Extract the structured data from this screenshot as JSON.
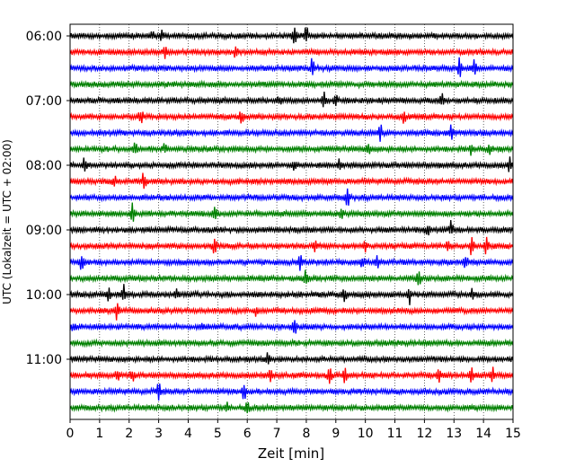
{
  "chart_data": {
    "type": "line",
    "xlabel": "Zeit  [min]",
    "ylabel": "UTC (Lokalzeit = UTC + 02:00)",
    "xlim": [
      0,
      15
    ],
    "x_ticks": [
      "0",
      "1",
      "2",
      "3",
      "4",
      "5",
      "6",
      "7",
      "8",
      "9",
      "10",
      "11",
      "12",
      "13",
      "14",
      "15"
    ],
    "y_tick_labels": [
      "06:00",
      "07:00",
      "08:00",
      "09:00",
      "10:00",
      "11:00"
    ],
    "grid": "vertical dotted",
    "trace_interval_minutes": 15,
    "trace_colors": [
      "#000000",
      "#ff0000",
      "#0000ff",
      "#008000"
    ],
    "series": [
      {
        "start": "06:00",
        "color": "#000000",
        "events": [
          [
            2.8,
            0.5
          ],
          [
            3.1,
            0.4
          ],
          [
            7.6,
            1.0
          ],
          [
            8.0,
            1.0
          ]
        ]
      },
      {
        "start": "06:15",
        "color": "#ff0000",
        "events": [
          [
            3.2,
            0.6
          ],
          [
            5.6,
            0.5
          ]
        ]
      },
      {
        "start": "06:30",
        "color": "#0000ff",
        "events": [
          [
            8.2,
            0.9
          ],
          [
            13.2,
            1.0
          ],
          [
            13.7,
            0.8
          ]
        ]
      },
      {
        "start": "06:45",
        "color": "#008000",
        "events": []
      },
      {
        "start": "07:00",
        "color": "#000000",
        "events": [
          [
            7.1,
            0.5
          ],
          [
            8.6,
            0.7
          ],
          [
            9.0,
            0.8
          ],
          [
            12.6,
            0.7
          ]
        ]
      },
      {
        "start": "07:15",
        "color": "#ff0000",
        "events": [
          [
            2.4,
            0.9
          ],
          [
            5.8,
            0.6
          ],
          [
            11.3,
            0.6
          ]
        ]
      },
      {
        "start": "07:30",
        "color": "#0000ff",
        "events": [
          [
            10.5,
            0.8
          ],
          [
            12.9,
            0.8
          ]
        ]
      },
      {
        "start": "07:45",
        "color": "#008000",
        "events": [
          [
            2.2,
            0.5
          ],
          [
            3.2,
            0.5
          ],
          [
            10.1,
            0.7
          ],
          [
            13.6,
            0.6
          ],
          [
            14.2,
            0.5
          ]
        ]
      },
      {
        "start": "08:00",
        "color": "#000000",
        "events": [
          [
            0.5,
            0.9
          ],
          [
            7.6,
            0.5
          ],
          [
            9.1,
            0.5
          ],
          [
            14.9,
            0.8
          ]
        ]
      },
      {
        "start": "08:15",
        "color": "#ff0000",
        "events": [
          [
            1.5,
            0.4
          ],
          [
            2.5,
            0.9
          ]
        ]
      },
      {
        "start": "08:30",
        "color": "#0000ff",
        "events": [
          [
            9.4,
            0.9
          ]
        ]
      },
      {
        "start": "08:45",
        "color": "#008000",
        "events": [
          [
            2.1,
            1.0
          ],
          [
            4.9,
            0.8
          ],
          [
            9.2,
            0.5
          ]
        ]
      },
      {
        "start": "09:00",
        "color": "#000000",
        "events": [
          [
            12.1,
            0.7
          ],
          [
            12.9,
            0.8
          ]
        ]
      },
      {
        "start": "09:15",
        "color": "#ff0000",
        "events": [
          [
            4.9,
            1.0
          ],
          [
            8.3,
            0.5
          ],
          [
            10.0,
            0.5
          ],
          [
            12.8,
            0.6
          ],
          [
            13.6,
            0.9
          ],
          [
            14.1,
            0.8
          ]
        ]
      },
      {
        "start": "09:30",
        "color": "#0000ff",
        "events": [
          [
            0.4,
            0.8
          ],
          [
            7.8,
            0.7
          ],
          [
            9.9,
            0.6
          ],
          [
            10.4,
            0.6
          ],
          [
            13.4,
            0.5
          ]
        ]
      },
      {
        "start": "09:45",
        "color": "#008000",
        "events": [
          [
            8.0,
            0.9
          ],
          [
            11.8,
            0.8
          ]
        ]
      },
      {
        "start": "10:00",
        "color": "#000000",
        "events": [
          [
            1.3,
            0.6
          ],
          [
            1.8,
            0.9
          ],
          [
            3.6,
            0.5
          ],
          [
            9.3,
            0.6
          ],
          [
            11.5,
            0.9
          ],
          [
            13.6,
            0.6
          ]
        ]
      },
      {
        "start": "10:15",
        "color": "#ff0000",
        "events": [
          [
            1.6,
            0.9
          ],
          [
            6.3,
            0.6
          ]
        ]
      },
      {
        "start": "10:30",
        "color": "#0000ff",
        "events": [
          [
            0.1,
            0.5
          ],
          [
            4.5,
            0.4
          ],
          [
            7.6,
            0.8
          ]
        ]
      },
      {
        "start": "10:45",
        "color": "#008000",
        "events": []
      },
      {
        "start": "11:00",
        "color": "#000000",
        "events": [
          [
            6.7,
            0.9
          ]
        ]
      },
      {
        "start": "11:15",
        "color": "#ff0000",
        "events": [
          [
            1.6,
            0.6
          ],
          [
            2.1,
            0.6
          ],
          [
            6.8,
            0.5
          ],
          [
            8.8,
            0.8
          ],
          [
            9.3,
            0.7
          ],
          [
            12.5,
            0.7
          ],
          [
            13.6,
            0.7
          ],
          [
            14.3,
            0.7
          ]
        ]
      },
      {
        "start": "11:30",
        "color": "#0000ff",
        "events": [
          [
            3.0,
            0.8
          ],
          [
            5.9,
            1.0
          ]
        ]
      },
      {
        "start": "11:45",
        "color": "#008000",
        "events": [
          [
            5.3,
            0.4
          ],
          [
            6.0,
            0.5
          ]
        ]
      }
    ]
  }
}
